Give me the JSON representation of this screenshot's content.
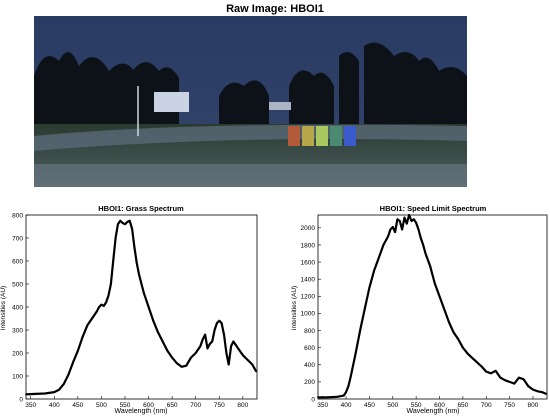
{
  "image": {
    "title": "Raw Image: HBOI1"
  },
  "chart_data": [
    {
      "type": "line",
      "title": "HBOI1: Grass Spectrum",
      "xlabel": "Wavelength (nm)",
      "ylabel": "Intensities (AU)",
      "xlim": [
        340,
        830
      ],
      "ylim": [
        0,
        800
      ],
      "xticks": [
        350,
        400,
        450,
        500,
        550,
        600,
        650,
        700,
        750,
        800
      ],
      "yticks": [
        0,
        100,
        200,
        300,
        400,
        500,
        600,
        700,
        800
      ],
      "grid": false,
      "line_color": "#000000",
      "series": [
        {
          "x": [
            340,
            360,
            380,
            400,
            410,
            420,
            430,
            440,
            450,
            460,
            470,
            480,
            490,
            495,
            500,
            505,
            510,
            515,
            520,
            525,
            530,
            535,
            540,
            545,
            550,
            555,
            560,
            565,
            570,
            575,
            580,
            585,
            590,
            600,
            610,
            620,
            630,
            640,
            650,
            660,
            670,
            680,
            690,
            700,
            710,
            715,
            720,
            725,
            730,
            735,
            740,
            745,
            750,
            755,
            760,
            765,
            770,
            775,
            780,
            790,
            800,
            810,
            820,
            828
          ],
          "y": [
            20,
            22,
            24,
            30,
            40,
            65,
            105,
            160,
            210,
            270,
            320,
            350,
            380,
            400,
            410,
            405,
            420,
            450,
            500,
            600,
            700,
            760,
            775,
            765,
            760,
            770,
            775,
            740,
            660,
            590,
            540,
            500,
            460,
            400,
            340,
            290,
            250,
            210,
            180,
            155,
            140,
            145,
            180,
            200,
            230,
            260,
            280,
            220,
            240,
            250,
            300,
            330,
            340,
            330,
            280,
            200,
            150,
            230,
            250,
            220,
            190,
            170,
            150,
            120
          ]
        }
      ]
    },
    {
      "type": "line",
      "title": "HBOI1: Speed Limit Spectrum",
      "xlabel": "Wavelength (nm)",
      "ylabel": "Intensities (AU)",
      "xlim": [
        340,
        830
      ],
      "ylim": [
        0,
        2150
      ],
      "xticks": [
        350,
        400,
        450,
        500,
        550,
        600,
        650,
        700,
        750,
        800
      ],
      "yticks": [
        0,
        200,
        400,
        600,
        800,
        1000,
        1200,
        1400,
        1600,
        1800,
        2000
      ],
      "grid": false,
      "line_color": "#000000",
      "series": [
        {
          "x": [
            340,
            360,
            380,
            395,
            400,
            405,
            410,
            420,
            430,
            440,
            450,
            460,
            470,
            480,
            490,
            495,
            500,
            505,
            510,
            515,
            520,
            525,
            530,
            535,
            540,
            545,
            550,
            555,
            560,
            565,
            570,
            580,
            590,
            600,
            610,
            620,
            630,
            640,
            650,
            660,
            670,
            680,
            690,
            700,
            710,
            720,
            730,
            740,
            750,
            760,
            770,
            780,
            790,
            800,
            810,
            820,
            828
          ],
          "y": [
            20,
            20,
            25,
            40,
            80,
            150,
            260,
            520,
            800,
            1050,
            1300,
            1500,
            1650,
            1800,
            1900,
            1980,
            2010,
            1950,
            2100,
            2080,
            1980,
            2120,
            2050,
            2150,
            2080,
            2100,
            2060,
            1980,
            1880,
            1800,
            1700,
            1550,
            1350,
            1200,
            1050,
            900,
            780,
            700,
            600,
            530,
            480,
            430,
            380,
            320,
            300,
            330,
            250,
            220,
            200,
            180,
            250,
            230,
            150,
            110,
            90,
            80,
            60
          ]
        }
      ]
    }
  ]
}
